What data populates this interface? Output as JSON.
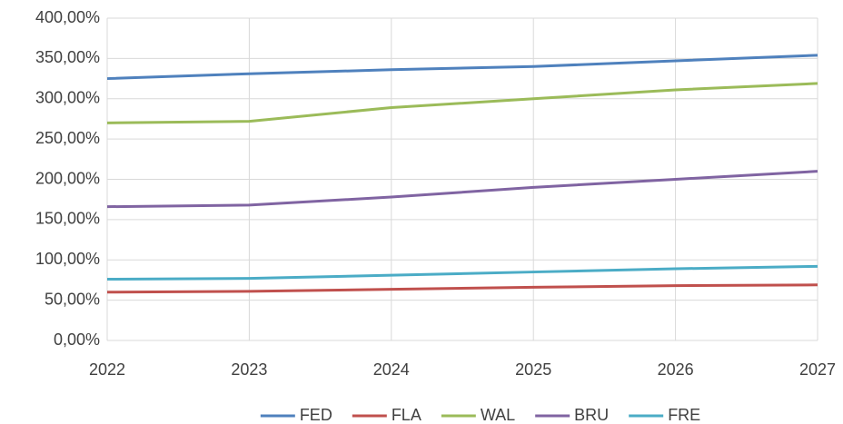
{
  "chart_data": {
    "type": "line",
    "x": [
      2022,
      2023,
      2024,
      2025,
      2026,
      2027
    ],
    "series": [
      {
        "name": "FED",
        "color": "#4f81bd",
        "values": [
          325,
          331,
          336,
          340,
          347,
          354
        ]
      },
      {
        "name": "FLA",
        "color": "#c0504d",
        "values": [
          60,
          61,
          63.5,
          66,
          68,
          69
        ]
      },
      {
        "name": "WAL",
        "color": "#9bbb59",
        "values": [
          270,
          272,
          289,
          300,
          311,
          319
        ]
      },
      {
        "name": "BRU",
        "color": "#8064a2",
        "values": [
          166,
          168,
          178,
          190,
          200,
          210
        ]
      },
      {
        "name": "FRE",
        "color": "#4bacc6",
        "values": [
          76,
          77,
          81,
          85,
          89,
          92
        ]
      }
    ],
    "xlim": [
      2022,
      2027
    ],
    "xticks": [
      2022,
      2023,
      2024,
      2025,
      2026,
      2027
    ],
    "ylim": [
      0,
      400
    ],
    "yticks": [
      {
        "value": 0,
        "label": "0,00%"
      },
      {
        "value": 50,
        "label": "50,00%"
      },
      {
        "value": 100,
        "label": "100,00%"
      },
      {
        "value": 150,
        "label": "150,00%"
      },
      {
        "value": 200,
        "label": "200,00%"
      },
      {
        "value": 250,
        "label": "250,00%"
      },
      {
        "value": 300,
        "label": "300,00%"
      },
      {
        "value": 350,
        "label": "350,00%"
      },
      {
        "value": 400,
        "label": "400,00%"
      }
    ],
    "grid": true,
    "legend": "bottom"
  }
}
